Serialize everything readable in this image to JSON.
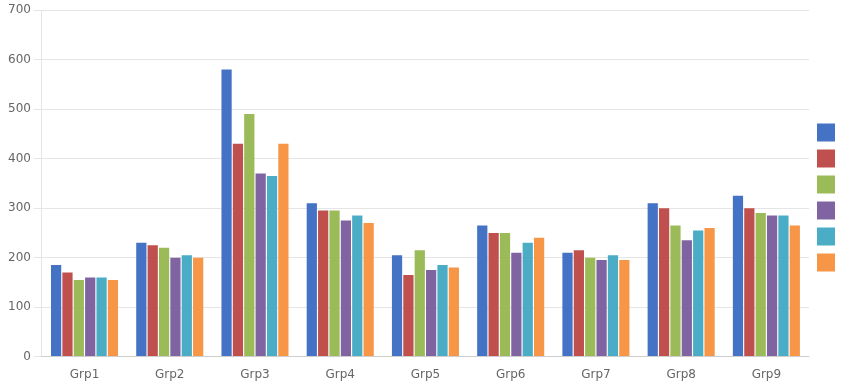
{
  "chart_data": {
    "type": "bar",
    "categories": [
      "Grp1",
      "Grp2",
      "Grp3",
      "Grp4",
      "Grp5",
      "Grp6",
      "Grp7",
      "Grp8",
      "Grp9"
    ],
    "series": [
      {
        "color": "#4472C4",
        "values": [
          185,
          230,
          580,
          310,
          205,
          265,
          210,
          310,
          325
        ]
      },
      {
        "color": "#C0504D",
        "values": [
          170,
          225,
          430,
          295,
          165,
          250,
          215,
          300,
          300
        ]
      },
      {
        "color": "#9BBB59",
        "values": [
          155,
          220,
          490,
          295,
          215,
          250,
          200,
          265,
          290
        ]
      },
      {
        "color": "#8064A2",
        "values": [
          160,
          200,
          370,
          275,
          175,
          210,
          195,
          235,
          285
        ]
      },
      {
        "color": "#4BACC6",
        "values": [
          160,
          205,
          365,
          285,
          185,
          230,
          205,
          255,
          285
        ]
      },
      {
        "color": "#F79646",
        "values": [
          155,
          200,
          430,
          270,
          180,
          240,
          195,
          260,
          265
        ]
      }
    ],
    "ylim": [
      0,
      700
    ],
    "yticks": [
      0,
      100,
      200,
      300,
      400,
      500,
      600,
      700
    ],
    "grid": true,
    "legend": "right"
  }
}
